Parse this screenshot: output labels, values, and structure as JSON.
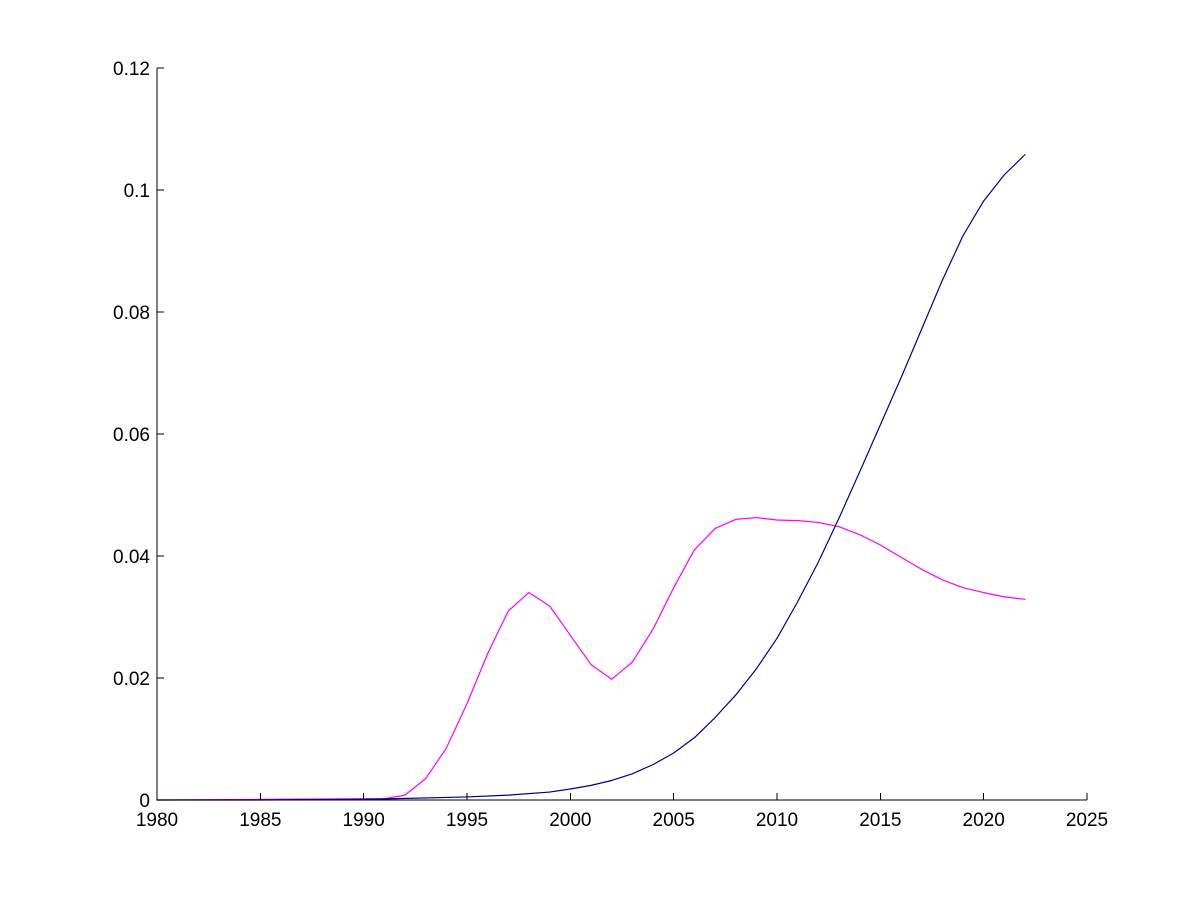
{
  "chart_data": {
    "type": "line",
    "title": "",
    "xlabel": "",
    "ylabel": "",
    "xlim": [
      1980,
      2025
    ],
    "ylim": [
      0,
      0.12
    ],
    "grid": false,
    "xticks": [
      1980,
      1985,
      1990,
      1995,
      2000,
      2005,
      2010,
      2015,
      2020,
      2025
    ],
    "yticks": [
      0,
      0.02,
      0.04,
      0.06,
      0.08,
      0.1,
      0.12
    ],
    "xtick_labels": [
      "1980",
      "1985",
      "1990",
      "1995",
      "2000",
      "2005",
      "2010",
      "2015",
      "2020",
      "2025"
    ],
    "ytick_labels": [
      "0",
      "0.02",
      "0.04",
      "0.06",
      "0.08",
      "0.1",
      "0.12"
    ],
    "series": [
      {
        "color": "#ff00ff",
        "x": [
          1980,
          1985,
          1990,
          1991,
          1992,
          1993,
          1994,
          1995,
          1996,
          1997,
          1998,
          1999,
          2000,
          2001,
          2002,
          2003,
          2004,
          2005,
          2006,
          2007,
          2008,
          2009,
          2010,
          2011,
          2012,
          2013,
          2014,
          2015,
          2016,
          2017,
          2018,
          2019,
          2020,
          2021,
          2022
        ],
        "y": [
          0,
          0.0001,
          0.0002,
          0.0002,
          0.0008,
          0.0035,
          0.0085,
          0.0158,
          0.024,
          0.031,
          0.034,
          0.0318,
          0.027,
          0.0222,
          0.0198,
          0.0226,
          0.028,
          0.0348,
          0.041,
          0.0445,
          0.046,
          0.0463,
          0.0459,
          0.0458,
          0.0455,
          0.0448,
          0.0435,
          0.0418,
          0.0398,
          0.0378,
          0.0361,
          0.0348,
          0.034,
          0.0333,
          0.0329
        ]
      },
      {
        "color": "#00008b",
        "x": [
          1980,
          1985,
          1990,
          1995,
          1997,
          1999,
          2000,
          2001,
          2002,
          2003,
          2004,
          2005,
          2006,
          2007,
          2008,
          2009,
          2010,
          2011,
          2012,
          2013,
          2014,
          2015,
          2016,
          2017,
          2018,
          2019,
          2020,
          2021,
          2022
        ],
        "y": [
          0,
          0,
          0.0001,
          0.0005,
          0.0008,
          0.0013,
          0.0018,
          0.0024,
          0.0032,
          0.0043,
          0.0058,
          0.0077,
          0.0102,
          0.0135,
          0.0172,
          0.0215,
          0.0265,
          0.0325,
          0.039,
          0.0462,
          0.0538,
          0.0615,
          0.0692,
          0.0772,
          0.0852,
          0.0925,
          0.0982,
          0.1025,
          0.1058
        ]
      }
    ]
  }
}
